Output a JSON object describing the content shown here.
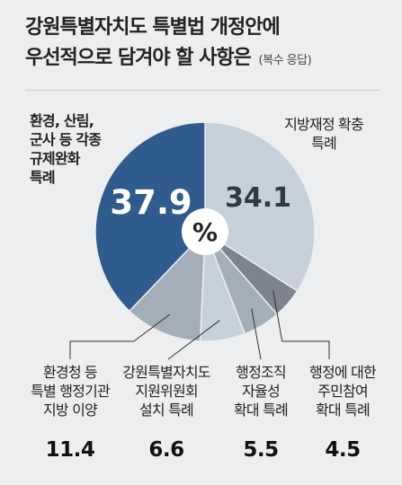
{
  "title": {
    "line1": "강원특별자치도 특별법 개정안에",
    "line2": "우선적으로 담겨야 할 사항은",
    "sub": "(복수 응답)"
  },
  "chart_data": {
    "type": "pie",
    "center_label": "%",
    "slices": [
      {
        "label": "지방재정 확충 특례",
        "label_lines": [
          "지방재정 확충",
          "특례"
        ],
        "value": 34.1,
        "value_text": "34.1",
        "color": "#c6d1db"
      },
      {
        "label": "행정에 대한 주민참여 확대 특례",
        "label_lines": [
          "행정에 대한",
          "주민참여",
          "확대 특례"
        ],
        "value": 4.5,
        "value_text": "4.5",
        "color": "#7c858e"
      },
      {
        "label": "행정조직 자율성 확대 특례",
        "label_lines": [
          "행정조직",
          "자율성",
          "확대 특례"
        ],
        "value": 5.5,
        "value_text": "5.5",
        "color": "#a3aeb9"
      },
      {
        "label": "강원특별자치도 지원위원회 설치 특례",
        "label_lines": [
          "강원특별자치도",
          "지원위원회",
          "설치 특례"
        ],
        "value": 6.6,
        "value_text": "6.6",
        "color": "#c6d1db"
      },
      {
        "label": "환경청 등 특별 행정기관 지방 이양",
        "label_lines": [
          "환경청 등",
          "특별 행정기관",
          "지방 이양"
        ],
        "value": 11.4,
        "value_text": "11.4",
        "color": "#a3aeb9"
      },
      {
        "label": "환경, 산림, 군사 등 각종 규제완화 특례",
        "label_lines": [
          "환경, 산림,",
          "군사 등 각종",
          "규제완화",
          "특례"
        ],
        "value": 37.9,
        "value_text": "37.9",
        "color": "#2f5c8c"
      }
    ]
  }
}
